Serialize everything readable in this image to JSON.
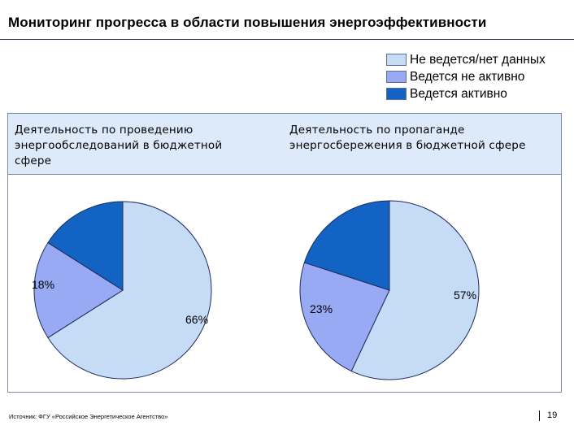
{
  "page": {
    "title": "Мониторинг прогресса в области повышения энергоэффективности",
    "source": "Источник: ФГУ «Российское Энергетическое Агентство»",
    "page_number": "19"
  },
  "colors": {
    "none": "#c6dbf6",
    "passive": "#98aaf4",
    "active": "#1263c4",
    "outline": "#1e2a5a"
  },
  "chart_data": [
    {
      "type": "pie",
      "title": "Деятельность по проведению\nэнергообследований в бюджетной\nсфере",
      "legend": [
        "Не ведется/нет данных",
        "Ведется не активно",
        "Ведется активно"
      ],
      "slices": [
        {
          "name": "Не ведется/нет данных",
          "value": 66,
          "label": "66%"
        },
        {
          "name": "Ведется не активно",
          "value": 18,
          "label": "18%"
        },
        {
          "name": "Ведется активно",
          "value": 16,
          "label": ""
        }
      ]
    },
    {
      "type": "pie",
      "title": "Деятельность по пропаганде\nэнергосбережения в бюджетной сфере",
      "legend": [
        "Не ведется/нет данных",
        "Ведется не активно",
        "Ведется активно"
      ],
      "slices": [
        {
          "name": "Не ведется/нет данных",
          "value": 57,
          "label": "57%"
        },
        {
          "name": "Ведется не активно",
          "value": 23,
          "label": "23%"
        },
        {
          "name": "Ведется активно",
          "value": 20,
          "label": ""
        }
      ]
    }
  ]
}
